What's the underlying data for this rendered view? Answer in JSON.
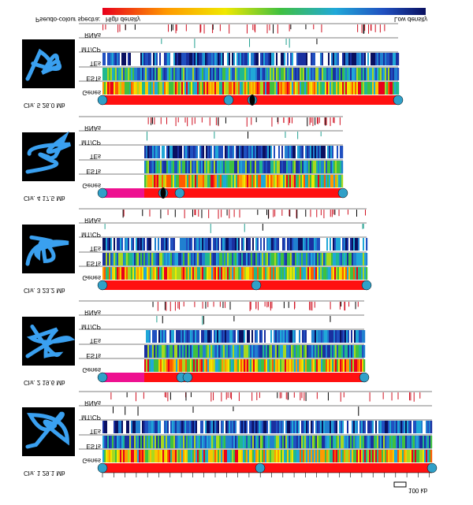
{
  "legend": {
    "title": "Pseudo-colour spectra:",
    "high": "High density",
    "low": "Low density"
  },
  "panels": [
    {
      "label": "Chr. 5 26.0 Mb",
      "tracks": [
        "RNAs",
        "MT/CP",
        "TEs",
        "ESTs",
        "Genes"
      ]
    },
    {
      "label": "Chr. 4 17.5 Mb",
      "tracks": [
        "RNAs",
        "MT/CP",
        "TEs",
        "ESTs",
        "Genes"
      ]
    },
    {
      "label": "Chr. 3 23.2 Mb",
      "tracks": [
        "RNAs",
        "MT/CP",
        "TEs",
        "ESTs",
        "Genes"
      ]
    },
    {
      "label": "Chr. 2 19.6 Mb",
      "tracks": [
        "RNAs",
        "MT/CP",
        "TEs",
        "ESTs",
        "Genes"
      ]
    },
    {
      "label": "Chr. 1 29.1 Mb",
      "tracks": [
        "RNAs",
        "MT/CP",
        "TEs",
        "ESTs",
        "Genes"
      ]
    }
  ],
  "scale_bar": "100 kb"
}
